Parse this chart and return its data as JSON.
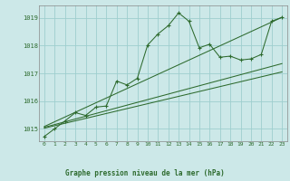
{
  "title": "Graphe pression niveau de la mer (hPa)",
  "bg_color": "#cce8e8",
  "grid_color": "#9ecece",
  "line_color": "#2d6a2d",
  "xlim": [
    -0.5,
    23.5
  ],
  "ylim": [
    1014.55,
    1019.45
  ],
  "yticks": [
    1015,
    1016,
    1017,
    1018,
    1019
  ],
  "xticks": [
    0,
    1,
    2,
    3,
    4,
    5,
    6,
    7,
    8,
    9,
    10,
    11,
    12,
    13,
    14,
    15,
    16,
    17,
    18,
    19,
    20,
    21,
    22,
    23
  ],
  "main_series": [
    [
      0,
      1014.72
    ],
    [
      1,
      1015.0
    ],
    [
      2,
      1015.28
    ],
    [
      3,
      1015.58
    ],
    [
      4,
      1015.48
    ],
    [
      5,
      1015.78
    ],
    [
      6,
      1015.82
    ],
    [
      7,
      1016.72
    ],
    [
      8,
      1016.58
    ],
    [
      9,
      1016.82
    ],
    [
      10,
      1018.02
    ],
    [
      11,
      1018.42
    ],
    [
      12,
      1018.72
    ],
    [
      13,
      1019.18
    ],
    [
      14,
      1018.88
    ],
    [
      15,
      1017.92
    ],
    [
      16,
      1018.05
    ],
    [
      17,
      1017.58
    ],
    [
      18,
      1017.62
    ],
    [
      19,
      1017.48
    ],
    [
      20,
      1017.52
    ],
    [
      21,
      1017.68
    ],
    [
      22,
      1018.88
    ],
    [
      23,
      1019.02
    ]
  ],
  "trend_lines": [
    [
      [
        0,
        1015.02
      ],
      [
        23,
        1017.05
      ]
    ],
    [
      [
        0,
        1015.05
      ],
      [
        23,
        1017.35
      ]
    ],
    [
      [
        0,
        1015.08
      ],
      [
        23,
        1019.02
      ]
    ]
  ]
}
